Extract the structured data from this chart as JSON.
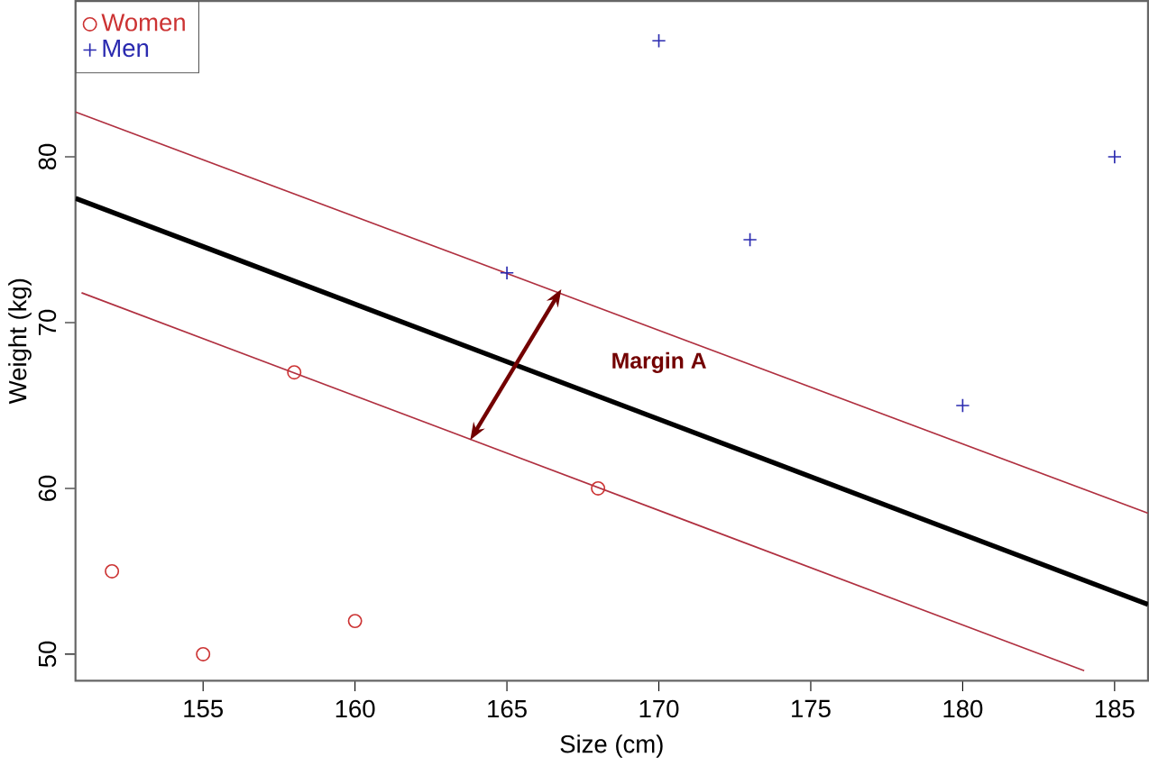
{
  "chart_data": {
    "type": "scatter",
    "xlabel": "Size (cm)",
    "ylabel": "Weight (kg)",
    "xlim": [
      150.8,
      186.1
    ],
    "ylim": [
      48.4,
      89.4
    ],
    "xticks": [
      155,
      160,
      165,
      170,
      175,
      180,
      185
    ],
    "yticks": [
      50,
      60,
      70,
      80
    ],
    "legend": "top left",
    "grid": false,
    "annotations": [
      "Margin A"
    ],
    "series": [
      {
        "name": "Women",
        "marker": "circle",
        "color": "#cc3333",
        "x": [
          152,
          155,
          158,
          160,
          168
        ],
        "values": [
          55,
          50,
          67,
          52,
          60
        ]
      },
      {
        "name": "Men",
        "marker": "cross",
        "color": "#2b2bb0",
        "x": [
          165,
          170,
          173,
          180,
          185
        ],
        "values": [
          73,
          87,
          75,
          65,
          80
        ]
      },
      {
        "type": "line",
        "color": "#000000",
        "x": [
          150.8,
          186.1
        ],
        "values": [
          77.5,
          53.0
        ]
      },
      {
        "type": "line",
        "color": "#b03040",
        "x": [
          150.8,
          186.1
        ],
        "values": [
          82.7,
          58.5
        ]
      },
      {
        "type": "line",
        "color": "#b03040",
        "x": [
          151,
          184
        ],
        "values": [
          71.8,
          49.0
        ]
      }
    ]
  }
}
